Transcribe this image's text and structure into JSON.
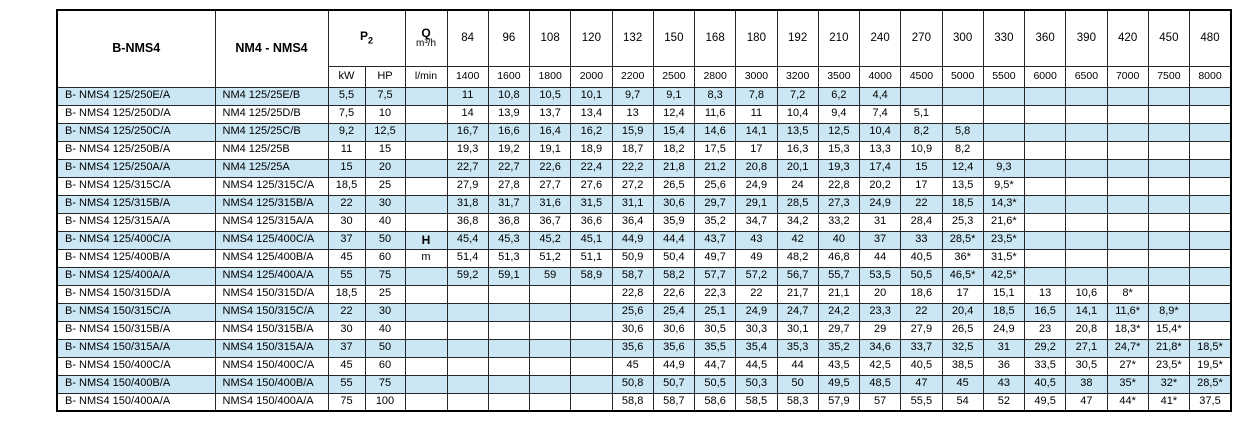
{
  "colors": {
    "row_stripe": "#cbe7f3",
    "border": "#000000",
    "text": "#000000"
  },
  "table": {
    "header": {
      "col_b": "B-NMS4",
      "col_nm": "NM4 - NMS4",
      "p2_base": "P",
      "p2_sub": "2",
      "kw": "kW",
      "hp": "HP",
      "q": "Q",
      "q_unit": "m³/h",
      "lmin": "l/min",
      "flow_m3h": [
        "84",
        "96",
        "108",
        "120",
        "132",
        "150",
        "168",
        "180",
        "192",
        "210",
        "240",
        "270",
        "300",
        "330",
        "360",
        "390",
        "420",
        "450",
        "480"
      ],
      "flow_lmin": [
        "1400",
        "1600",
        "1800",
        "2000",
        "2200",
        "2500",
        "2800",
        "3000",
        "3200",
        "3500",
        "4000",
        "4500",
        "5000",
        "5500",
        "6000",
        "6500",
        "7000",
        "7500",
        "8000"
      ]
    },
    "h_label": "H",
    "m_label": "m",
    "rows": [
      {
        "b": "B- NMS4 125/250E/A",
        "nm": "NM4 125/25E/B",
        "kw": "5,5",
        "hp": "7,5",
        "values": [
          "11",
          "10,8",
          "10,5",
          "10,1",
          "9,7",
          "9,1",
          "8,3",
          "7,8",
          "7,2",
          "6,2",
          "4,4",
          "",
          "",
          "",
          "",
          "",
          "",
          "",
          ""
        ]
      },
      {
        "b": "B- NMS4 125/250D/A",
        "nm": "NM4 125/25D/B",
        "kw": "7,5",
        "hp": "10",
        "values": [
          "14",
          "13,9",
          "13,7",
          "13,4",
          "13",
          "12,4",
          "11,6",
          "11",
          "10,4",
          "9,4",
          "7,4",
          "5,1",
          "",
          "",
          "",
          "",
          "",
          "",
          ""
        ]
      },
      {
        "b": "B- NMS4 125/250C/A",
        "nm": "NM4 125/25C/B",
        "kw": "9,2",
        "hp": "12,5",
        "values": [
          "16,7",
          "16,6",
          "16,4",
          "16,2",
          "15,9",
          "15,4",
          "14,6",
          "14,1",
          "13,5",
          "12,5",
          "10,4",
          "8,2",
          "5,8",
          "",
          "",
          "",
          "",
          "",
          ""
        ]
      },
      {
        "b": "B- NMS4 125/250B/A",
        "nm": "NM4 125/25B",
        "kw": "11",
        "hp": "15",
        "values": [
          "19,3",
          "19,2",
          "19,1",
          "18,9",
          "18,7",
          "18,2",
          "17,5",
          "17",
          "16,3",
          "15,3",
          "13,3",
          "10,9",
          "8,2",
          "",
          "",
          "",
          "",
          "",
          ""
        ]
      },
      {
        "b": "B- NMS4 125/250A/A",
        "nm": "NM4 125/25A",
        "kw": "15",
        "hp": "20",
        "values": [
          "22,7",
          "22,7",
          "22,6",
          "22,4",
          "22,2",
          "21,8",
          "21,2",
          "20,8",
          "20,1",
          "19,3",
          "17,4",
          "15",
          "12,4",
          "9,3",
          "",
          "",
          "",
          "",
          ""
        ]
      },
      {
        "b": "B- NMS4 125/315C/A",
        "nm": "NMS4 125/315C/A",
        "kw": "18,5",
        "hp": "25",
        "values": [
          "27,9",
          "27,8",
          "27,7",
          "27,6",
          "27,2",
          "26,5",
          "25,6",
          "24,9",
          "24",
          "22,8",
          "20,2",
          "17",
          "13,5",
          "9,5*",
          "",
          "",
          "",
          "",
          ""
        ]
      },
      {
        "b": "B- NMS4 125/315B/A",
        "nm": "NMS4 125/315B/A",
        "kw": "22",
        "hp": "30",
        "values": [
          "31,8",
          "31,7",
          "31,6",
          "31,5",
          "31,1",
          "30,6",
          "29,7",
          "29,1",
          "28,5",
          "27,3",
          "24,9",
          "22",
          "18,5",
          "14,3*",
          "",
          "",
          "",
          "",
          ""
        ]
      },
      {
        "b": "B- NMS4 125/315A/A",
        "nm": "NMS4 125/315A/A",
        "kw": "30",
        "hp": "40",
        "values": [
          "36,8",
          "36,8",
          "36,7",
          "36,6",
          "36,4",
          "35,9",
          "35,2",
          "34,7",
          "34,2",
          "33,2",
          "31",
          "28,4",
          "25,3",
          "21,6*",
          "",
          "",
          "",
          "",
          ""
        ]
      },
      {
        "b": "B- NMS4 125/400C/A",
        "nm": "NMS4 125/400C/A",
        "kw": "37",
        "hp": "50",
        "values": [
          "45,4",
          "45,3",
          "45,2",
          "45,1",
          "44,9",
          "44,4",
          "43,7",
          "43",
          "42",
          "40",
          "37",
          "33",
          "28,5*",
          "23,5*",
          "",
          "",
          "",
          "",
          ""
        ]
      },
      {
        "b": "B- NMS4 125/400B/A",
        "nm": "NMS4 125/400B/A",
        "kw": "45",
        "hp": "60",
        "values": [
          "51,4",
          "51,3",
          "51,2",
          "51,1",
          "50,9",
          "50,4",
          "49,7",
          "49",
          "48,2",
          "46,8",
          "44",
          "40,5",
          "36*",
          "31,5*",
          "",
          "",
          "",
          "",
          ""
        ]
      },
      {
        "b": "B- NMS4 125/400A/A",
        "nm": "NMS4 125/400A/A",
        "kw": "55",
        "hp": "75",
        "values": [
          "59,2",
          "59,1",
          "59",
          "58,9",
          "58,7",
          "58,2",
          "57,7",
          "57,2",
          "56,7",
          "55,7",
          "53,5",
          "50,5",
          "46,5*",
          "42,5*",
          "",
          "",
          "",
          "",
          ""
        ]
      },
      {
        "b": "B- NMS4 150/315D/A",
        "nm": "NMS4 150/315D/A",
        "kw": "18,5",
        "hp": "25",
        "values": [
          "",
          "",
          "",
          "",
          "22,8",
          "22,6",
          "22,3",
          "22",
          "21,7",
          "21,1",
          "20",
          "18,6",
          "17",
          "15,1",
          "13",
          "10,6",
          "8*",
          "",
          ""
        ]
      },
      {
        "b": "B- NMS4 150/315C/A",
        "nm": "NMS4 150/315C/A",
        "kw": "22",
        "hp": "30",
        "values": [
          "",
          "",
          "",
          "",
          "25,6",
          "25,4",
          "25,1",
          "24,9",
          "24,7",
          "24,2",
          "23,3",
          "22",
          "20,4",
          "18,5",
          "16,5",
          "14,1",
          "11,6*",
          "8,9*",
          ""
        ]
      },
      {
        "b": "B- NMS4 150/315B/A",
        "nm": "NMS4 150/315B/A",
        "kw": "30",
        "hp": "40",
        "values": [
          "",
          "",
          "",
          "",
          "30,6",
          "30,6",
          "30,5",
          "30,3",
          "30,1",
          "29,7",
          "29",
          "27,9",
          "26,5",
          "24,9",
          "23",
          "20,8",
          "18,3*",
          "15,4*",
          ""
        ]
      },
      {
        "b": "B- NMS4 150/315A/A",
        "nm": "NMS4 150/315A/A",
        "kw": "37",
        "hp": "50",
        "values": [
          "",
          "",
          "",
          "",
          "35,6",
          "35,6",
          "35,5",
          "35,4",
          "35,3",
          "35,2",
          "34,6",
          "33,7",
          "32,5",
          "31",
          "29,2",
          "27,1",
          "24,7*",
          "21,8*",
          "18,5*"
        ]
      },
      {
        "b": "B- NMS4 150/400C/A",
        "nm": "NMS4 150/400C/A",
        "kw": "45",
        "hp": "60",
        "values": [
          "",
          "",
          "",
          "",
          "45",
          "44,9",
          "44,7",
          "44,5",
          "44",
          "43,5",
          "42,5",
          "40,5",
          "38,5",
          "36",
          "33,5",
          "30,5",
          "27*",
          "23,5*",
          "19,5*"
        ]
      },
      {
        "b": "B- NMS4 150/400B/A",
        "nm": "NMS4 150/400B/A",
        "kw": "55",
        "hp": "75",
        "values": [
          "",
          "",
          "",
          "",
          "50,8",
          "50,7",
          "50,5",
          "50,3",
          "50",
          "49,5",
          "48,5",
          "47",
          "45",
          "43",
          "40,5",
          "38",
          "35*",
          "32*",
          "28,5*"
        ]
      },
      {
        "b": "B- NMS4 150/400A/A",
        "nm": "NMS4 150/400A/A",
        "kw": "75",
        "hp": "100",
        "values": [
          "",
          "",
          "",
          "",
          "58,8",
          "58,7",
          "58,6",
          "58,5",
          "58,3",
          "57,9",
          "57",
          "55,5",
          "54",
          "52",
          "49,5",
          "47",
          "44*",
          "41*",
          "37,5"
        ]
      }
    ]
  }
}
